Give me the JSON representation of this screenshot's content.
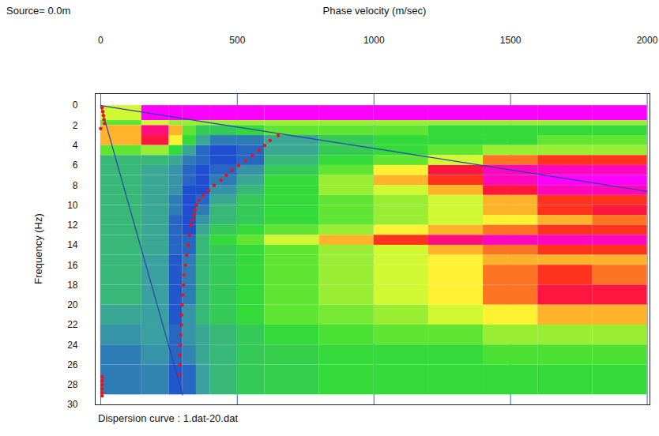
{
  "chart_data": {
    "type": "heatmap",
    "x_label": "Phase velocity (m/sec)",
    "y_label": "Frequency (Hz)",
    "annotations": [
      "Source= 0.0m"
    ],
    "caption": "Dispersion curve : 1.dat-20.dat",
    "xlim": [
      -20,
      2010
    ],
    "xticks": [
      0,
      500,
      1000,
      1500,
      2000
    ],
    "ylim": [
      -1.2,
      30
    ],
    "yticks": [
      0,
      2,
      4,
      6,
      8,
      10,
      12,
      14,
      16,
      18,
      20,
      22,
      24,
      26,
      28,
      30
    ],
    "grid": true,
    "velocity_edges": [
      0,
      150,
      250,
      300,
      350,
      400,
      500,
      600,
      800,
      1000,
      1200,
      1400,
      1600,
      1800,
      2000
    ],
    "frequency_edges": [
      0,
      1.5,
      2,
      3,
      4,
      5,
      6,
      7,
      8,
      9,
      10,
      11,
      12,
      13,
      14,
      15,
      16,
      18,
      20,
      22,
      24,
      26,
      29
    ],
    "cells": [
      [
        0.4,
        0,
        0,
        0,
        0,
        0,
        0,
        0,
        0,
        0,
        0,
        0,
        0,
        0
      ],
      [
        0.5,
        0.4,
        0.45,
        0.45,
        0.45,
        0.45,
        0.45,
        0.45,
        0.45,
        0.45,
        0.45,
        0.45,
        0.45,
        0.45
      ],
      [
        0.3,
        0.1,
        0.3,
        0.5,
        0.6,
        0.6,
        0.55,
        0.5,
        0.5,
        0.5,
        0.55,
        0.55,
        0.55,
        0.55
      ],
      [
        0.3,
        0.15,
        0.35,
        0.55,
        0.7,
        0.8,
        0.8,
        0.7,
        0.6,
        0.55,
        0.55,
        0.55,
        0.5,
        0.5
      ],
      [
        0.5,
        0.45,
        0.55,
        0.7,
        0.85,
        0.9,
        0.85,
        0.7,
        0.6,
        0.55,
        0.5,
        0.45,
        0.45,
        0.45
      ],
      [
        0.65,
        0.65,
        0.7,
        0.8,
        0.85,
        0.9,
        0.85,
        0.65,
        0.55,
        0.5,
        0.4,
        0.25,
        0.2,
        0.2
      ],
      [
        0.65,
        0.7,
        0.75,
        0.85,
        0.9,
        0.85,
        0.75,
        0.6,
        0.5,
        0.35,
        0.15,
        0.05,
        0.05,
        0.05
      ],
      [
        0.65,
        0.7,
        0.75,
        0.85,
        0.9,
        0.8,
        0.7,
        0.55,
        0.45,
        0.3,
        0.2,
        0.05,
        0,
        0
      ],
      [
        0.65,
        0.7,
        0.75,
        0.9,
        0.9,
        0.75,
        0.65,
        0.55,
        0.45,
        0.4,
        0.3,
        0.15,
        0.05,
        0.05
      ],
      [
        0.65,
        0.7,
        0.8,
        0.9,
        0.85,
        0.7,
        0.6,
        0.55,
        0.5,
        0.45,
        0.4,
        0.3,
        0.2,
        0.2
      ],
      [
        0.65,
        0.7,
        0.8,
        0.9,
        0.8,
        0.65,
        0.6,
        0.55,
        0.5,
        0.45,
        0.4,
        0.3,
        0.2,
        0.15
      ],
      [
        0.65,
        0.7,
        0.85,
        0.9,
        0.75,
        0.65,
        0.6,
        0.55,
        0.5,
        0.45,
        0.4,
        0.35,
        0.3,
        0.25
      ],
      [
        0.65,
        0.7,
        0.85,
        0.9,
        0.7,
        0.6,
        0.55,
        0.5,
        0.45,
        0.35,
        0.3,
        0.25,
        0.2,
        0.2
      ],
      [
        0.65,
        0.7,
        0.85,
        0.85,
        0.65,
        0.55,
        0.5,
        0.4,
        0.3,
        0.2,
        0.1,
        0.05,
        0.05,
        0.05
      ],
      [
        0.65,
        0.7,
        0.85,
        0.85,
        0.65,
        0.6,
        0.55,
        0.5,
        0.45,
        0.4,
        0.3,
        0.25,
        0.2,
        0.2
      ],
      [
        0.65,
        0.72,
        0.88,
        0.8,
        0.65,
        0.6,
        0.55,
        0.5,
        0.45,
        0.4,
        0.35,
        0.3,
        0.3,
        0.3
      ],
      [
        0.65,
        0.72,
        0.88,
        0.8,
        0.65,
        0.6,
        0.55,
        0.5,
        0.45,
        0.4,
        0.35,
        0.25,
        0.2,
        0.25
      ],
      [
        0.65,
        0.72,
        0.88,
        0.8,
        0.65,
        0.6,
        0.55,
        0.5,
        0.45,
        0.4,
        0.35,
        0.25,
        0.15,
        0.15
      ],
      [
        0.7,
        0.72,
        0.88,
        0.75,
        0.65,
        0.6,
        0.55,
        0.5,
        0.48,
        0.45,
        0.4,
        0.35,
        0.3,
        0.3
      ],
      [
        0.75,
        0.72,
        0.85,
        0.75,
        0.7,
        0.65,
        0.6,
        0.55,
        0.52,
        0.5,
        0.5,
        0.45,
        0.45,
        0.45
      ],
      [
        0.8,
        0.75,
        0.85,
        0.78,
        0.7,
        0.65,
        0.6,
        0.58,
        0.55,
        0.55,
        0.55,
        0.52,
        0.52,
        0.52
      ],
      [
        0.8,
        0.78,
        0.88,
        0.85,
        0.72,
        0.65,
        0.6,
        0.58,
        0.55,
        0.55,
        0.55,
        0.55,
        0.55,
        0.55
      ]
    ],
    "picks": {
      "color": "#e8141a",
      "marker": "circle",
      "x": [
        650,
        620,
        600,
        580,
        555,
        530,
        505,
        480,
        460,
        440,
        415,
        395,
        375,
        360,
        350,
        345,
        340,
        335,
        330,
        325,
        320,
        315,
        310,
        305,
        303,
        300,
        298,
        296,
        295,
        293,
        292,
        290,
        290,
        290,
        5,
        8,
        10,
        12,
        14,
        0,
        5,
        5,
        5,
        5,
        5,
        5
      ],
      "y": [
        3,
        3.5,
        4,
        4.5,
        5,
        5.5,
        6,
        6.5,
        7,
        7.5,
        8,
        8.5,
        9,
        9.5,
        10,
        10.5,
        11,
        11.5,
        12,
        13,
        14,
        15,
        16,
        17,
        18,
        19,
        20,
        21,
        22,
        23,
        24,
        25,
        26,
        27,
        0.2,
        0.6,
        1,
        1.4,
        1.8,
        2.3,
        27.2,
        27.6,
        28,
        28.4,
        28.8,
        29.1
      ]
    },
    "lines": [
      {
        "color": "#2b3fb0",
        "x": [
          0,
          2000
        ],
        "y": [
          0,
          8.6
        ]
      },
      {
        "color": "#2b3fb0",
        "x": [
          0,
          300
        ],
        "y": [
          0,
          29
        ]
      }
    ]
  }
}
